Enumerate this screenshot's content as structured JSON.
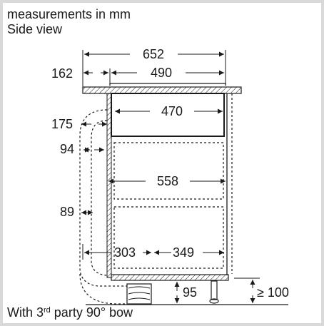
{
  "caption": {
    "line1": "measurements in mm",
    "line2": "Side view",
    "footer_prefix": "With 3",
    "footer_sup": "rd",
    "footer_suffix": " party 90° bow"
  },
  "dimensions": {
    "d652": "652",
    "d162": "162",
    "d490": "490",
    "d470": "470",
    "d175": "175",
    "d94": "94",
    "d558": "558",
    "d89": "89",
    "d303": "303",
    "d349": "349",
    "d95": "95",
    "d100": "≥ 100"
  },
  "colors": {
    "line": "#1a1a1a",
    "background": "#ffffff",
    "border": "#d9d9d9"
  }
}
